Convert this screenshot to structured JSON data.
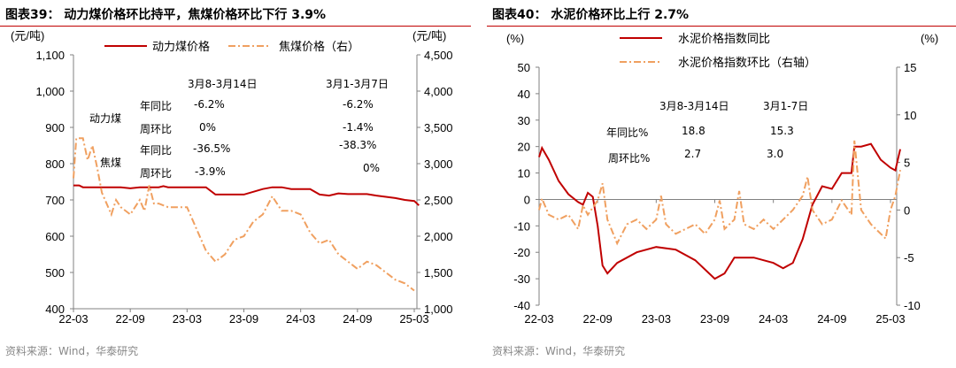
{
  "source": "资料来源：Wind，华泰研究",
  "colors": {
    "red": "#c00000",
    "orange": "#f0a060",
    "axis": "#808080"
  },
  "chart_data": [
    {
      "type": "line",
      "title": "图表39：  动力煤价格环比持平，焦煤价格环比下行 3.9%",
      "y_left_unit": "(元/吨)",
      "y_right_unit": "(元/吨)",
      "ylim_left": [
        400,
        1100
      ],
      "ylim_right": [
        1000,
        4500
      ],
      "yticks_left": [
        "400",
        "500",
        "600",
        "700",
        "800",
        "900",
        "1,000",
        "1,100"
      ],
      "yticks_right": [
        "1,000",
        "1,500",
        "2,000",
        "2,500",
        "3,000",
        "3,500",
        "4,000",
        "4,500"
      ],
      "xticks": [
        "22-03",
        "22-09",
        "23-03",
        "23-09",
        "24-03",
        "24-09",
        "25-03"
      ],
      "legend": "top",
      "series": [
        {
          "name": "动力煤价格",
          "axis": "left",
          "style": "solid",
          "color": "#c00000",
          "points": [
            [
              "22-03",
              740
            ],
            [
              "22-03+0.6",
              740
            ],
            [
              "22-04",
              735
            ],
            [
              "22-08",
              735
            ],
            [
              "22-09",
              732
            ],
            [
              "22-10",
              735
            ],
            [
              "22-12",
              735
            ],
            [
              "22-12+0.5",
              738
            ],
            [
              "23-01",
              735
            ],
            [
              "23-05",
              735
            ],
            [
              "23-06",
              715
            ],
            [
              "23-07",
              715
            ],
            [
              "23-08",
              715
            ],
            [
              "23-09",
              715
            ],
            [
              "23-11",
              730
            ],
            [
              "23-12",
              735
            ],
            [
              "24-01",
              735
            ],
            [
              "24-02",
              730
            ],
            [
              "24-04",
              730
            ],
            [
              "24-05",
              715
            ],
            [
              "24-06",
              712
            ],
            [
              "24-07",
              718
            ],
            [
              "24-08",
              716
            ],
            [
              "24-10",
              716
            ],
            [
              "24-11",
              712
            ],
            [
              "25-01",
              705
            ],
            [
              "25-02",
              700
            ],
            [
              "25-03",
              697
            ],
            [
              "25-03+0.5",
              685
            ]
          ]
        },
        {
          "name": "焦煤价格（右）",
          "axis": "right",
          "style": "dashdot",
          "color": "#f0a060",
          "points": [
            [
              "22-03",
              2800
            ],
            [
              "22-03+0.3",
              3350
            ],
            [
              "22-04",
              3350
            ],
            [
              "22-04+0.5",
              3050
            ],
            [
              "22-05",
              3250
            ],
            [
              "22-05+0.5",
              2950
            ],
            [
              "22-06",
              2600
            ],
            [
              "22-07",
              2300
            ],
            [
              "22-07+0.5",
              2500
            ],
            [
              "22-08",
              2400
            ],
            [
              "22-09",
              2300
            ],
            [
              "22-09+0.5",
              2400
            ],
            [
              "22-10",
              2500
            ],
            [
              "22-10+0.5",
              2350
            ],
            [
              "22-11",
              2700
            ],
            [
              "22-11+0.5",
              2450
            ],
            [
              "22-12",
              2450
            ],
            [
              "23-01",
              2400
            ],
            [
              "23-02",
              2400
            ],
            [
              "23-03",
              2400
            ],
            [
              "23-04",
              2100
            ],
            [
              "23-05",
              1800
            ],
            [
              "23-06",
              1650
            ],
            [
              "23-07",
              1750
            ],
            [
              "23-08",
              1950
            ],
            [
              "23-09",
              2000
            ],
            [
              "23-10",
              2200
            ],
            [
              "23-11",
              2300
            ],
            [
              "23-12",
              2550
            ],
            [
              "24-01",
              2350
            ],
            [
              "24-02",
              2350
            ],
            [
              "24-03",
              2300
            ],
            [
              "24-04",
              2050
            ],
            [
              "24-05",
              1900
            ],
            [
              "24-06",
              1950
            ],
            [
              "24-07",
              1750
            ],
            [
              "24-08",
              1650
            ],
            [
              "24-09",
              1550
            ],
            [
              "24-10",
              1650
            ],
            [
              "24-11",
              1600
            ],
            [
              "24-12",
              1500
            ],
            [
              "25-01",
              1400
            ],
            [
              "25-02",
              1350
            ],
            [
              "25-03",
              1250
            ]
          ]
        }
      ],
      "annotations": {
        "col1": "3月8-3月14日",
        "col2": "3月1-3月7日",
        "group1": "动力煤",
        "group2": "焦煤",
        "yoy": "年同比",
        "wow": "周环比",
        "coal_yoy_1": "-6.2%",
        "coal_wow_1": "0%",
        "coke_yoy_1": "-36.5%",
        "coke_wow_1": "-3.9%",
        "coal_yoy_2": "-6.2%",
        "coal_wow_2": "-1.4%",
        "coke_yoy_2": "-38.3%",
        "coke_wow_2": "0%"
      }
    },
    {
      "type": "line",
      "title": "图表40：  水泥价格环比上行 2.7%",
      "y_left_unit": "(%)",
      "y_right_unit": "(%)",
      "ylim_left": [
        -40,
        50
      ],
      "ylim_right": [
        -10,
        15
      ],
      "yticks_left": [
        "-40",
        "-30",
        "-20",
        "-10",
        "0",
        "10",
        "20",
        "30",
        "40",
        "50"
      ],
      "yticks_right": [
        "-10",
        "-5",
        "0",
        "5",
        "10",
        "15"
      ],
      "xticks": [
        "22-03",
        "22-09",
        "23-03",
        "23-09",
        "24-03",
        "24-09",
        "25-03"
      ],
      "legend": "top",
      "series": [
        {
          "name": "水泥价格指数同比",
          "axis": "left",
          "style": "solid",
          "color": "#c00000",
          "points": [
            [
              "22-03",
              16
            ],
            [
              "22-03+0.3",
              19.5
            ],
            [
              "22-04",
              15
            ],
            [
              "22-05",
              7
            ],
            [
              "22-06",
              2
            ],
            [
              "22-07",
              -1
            ],
            [
              "22-07+0.5",
              -2
            ],
            [
              "22-08",
              2.5
            ],
            [
              "22-08+0.5",
              1
            ],
            [
              "22-09",
              -10
            ],
            [
              "22-09+0.5",
              -25
            ],
            [
              "22-10",
              -28
            ],
            [
              "22-11",
              -24
            ],
            [
              "23-01",
              -20
            ],
            [
              "23-03",
              -18
            ],
            [
              "23-05",
              -19
            ],
            [
              "23-07",
              -23
            ],
            [
              "23-09",
              -30
            ],
            [
              "23-10",
              -28
            ],
            [
              "23-11",
              -22
            ],
            [
              "24-01",
              -22
            ],
            [
              "24-03",
              -24
            ],
            [
              "24-04",
              -26
            ],
            [
              "24-05",
              -24
            ],
            [
              "24-06",
              -15
            ],
            [
              "24-07",
              -2
            ],
            [
              "24-08",
              5
            ],
            [
              "24-09",
              4
            ],
            [
              "24-10",
              10
            ],
            [
              "24-11",
              10
            ],
            [
              "24-11+0.3",
              20
            ],
            [
              "24-12",
              20
            ],
            [
              "25-01",
              21
            ],
            [
              "25-02",
              15
            ],
            [
              "25-03",
              12
            ],
            [
              "25-03+0.5",
              11
            ],
            [
              "25-04",
              19
            ]
          ]
        },
        {
          "name": "水泥价格指数环比（右轴）",
          "axis": "right",
          "style": "dashdot",
          "color": "#f0a060",
          "points": [
            [
              "22-03",
              0
            ],
            [
              "22-03+0.3",
              1.2
            ],
            [
              "22-04",
              -0.5
            ],
            [
              "22-05",
              -1
            ],
            [
              "22-06",
              -0.5
            ],
            [
              "22-07",
              -2
            ],
            [
              "22-07+0.5",
              0.5
            ],
            [
              "22-08",
              -0.5
            ],
            [
              "22-09",
              1
            ],
            [
              "22-09+0.5",
              2.8
            ],
            [
              "22-10",
              -1
            ],
            [
              "22-11",
              -3.5
            ],
            [
              "22-12",
              -1.5
            ],
            [
              "23-01",
              -1
            ],
            [
              "23-02",
              -2
            ],
            [
              "23-03",
              -1
            ],
            [
              "23-03+0.5",
              1.5
            ],
            [
              "23-04",
              -1.5
            ],
            [
              "23-05",
              -2.5
            ],
            [
              "23-06",
              -2
            ],
            [
              "23-07",
              -1.5
            ],
            [
              "23-08",
              -2.5
            ],
            [
              "23-09",
              -1
            ],
            [
              "23-09+0.5",
              1
            ],
            [
              "23-10",
              -2
            ],
            [
              "23-11",
              -1
            ],
            [
              "23-11+0.5",
              2
            ],
            [
              "23-12",
              -1.5
            ],
            [
              "24-01",
              -2
            ],
            [
              "24-02",
              -1
            ],
            [
              "24-03",
              -2
            ],
            [
              "24-04",
              -1
            ],
            [
              "24-05",
              0
            ],
            [
              "24-06",
              1.5
            ],
            [
              "24-06+0.5",
              3.5
            ],
            [
              "24-07",
              0
            ],
            [
              "24-08",
              -1.5
            ],
            [
              "24-09",
              -1
            ],
            [
              "24-10",
              1
            ],
            [
              "24-11",
              -0.5
            ],
            [
              "24-11+0.3",
              7.3
            ],
            [
              "24-12",
              0
            ],
            [
              "25-01",
              -1.5
            ],
            [
              "25-02",
              -2.5
            ],
            [
              "25-02+0.5",
              -3
            ],
            [
              "25-03",
              0
            ],
            [
              "25-03+0.5",
              1.5
            ],
            [
              "25-04",
              4.2
            ]
          ]
        }
      ],
      "annotations": {
        "col1": "3月8-3月14日",
        "col2": "3月1-7日",
        "yoy": "年同比%",
        "wow": "周环比%",
        "yoy_1": "18.8",
        "wow_1": "2.7",
        "yoy_2": "15.3",
        "wow_2": "3.0"
      }
    }
  ]
}
